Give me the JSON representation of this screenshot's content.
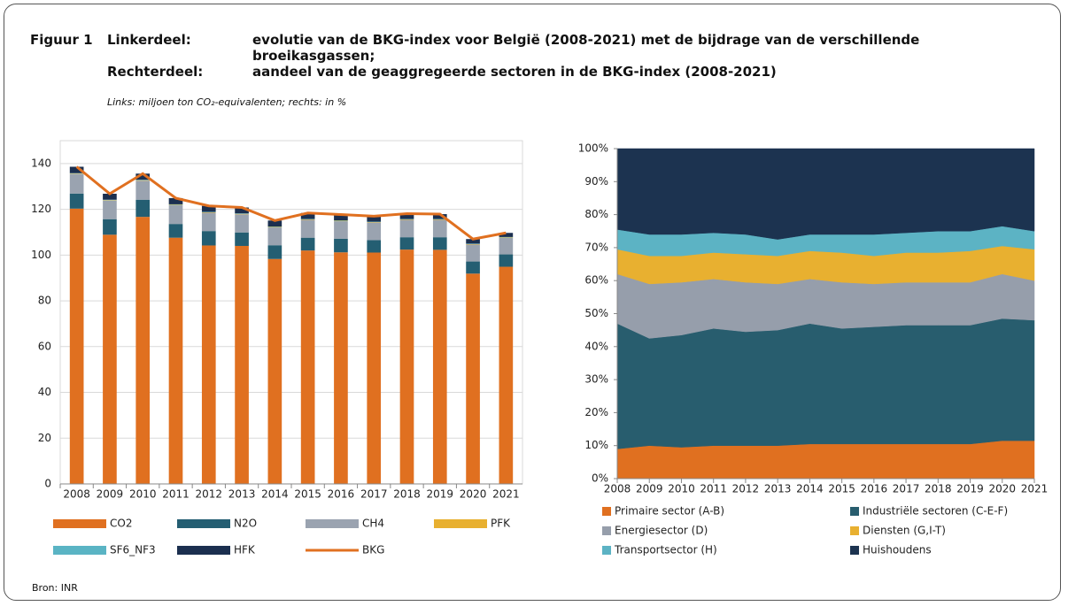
{
  "header": {
    "figure": "Figuur 1",
    "lines": [
      {
        "label": "Linkerdeel:",
        "text": "evolutie van de BKG-index voor België (2008-2021) met de bijdrage van de verschillende broeikasgassen;"
      },
      {
        "label": "Rechterdeel:",
        "text": "aandeel van de geaggregeerde sectoren in de BKG-index (2008-2021)"
      }
    ],
    "note": "Links: miljoen ton CO₂-equivalenten; rechts: in %"
  },
  "source": "Bron: INR",
  "chart_data": [
    {
      "type": "bar",
      "stacked": true,
      "grid": true,
      "legend": "bottom",
      "categories": [
        "2008",
        "2009",
        "2010",
        "2011",
        "2012",
        "2013",
        "2014",
        "2015",
        "2016",
        "2017",
        "2018",
        "2019",
        "2020",
        "2021"
      ],
      "ylim": [
        0,
        150
      ],
      "yticks": [
        0,
        20,
        40,
        60,
        80,
        100,
        120,
        140
      ],
      "series": [
        {
          "name": "CO2",
          "type": "bar",
          "color": "#e07020",
          "values": [
            120.3,
            108.9,
            116.7,
            107.6,
            104.2,
            104.0,
            98.3,
            102.0,
            101.2,
            101.1,
            102.4,
            102.3,
            91.9,
            94.9
          ]
        },
        {
          "name": "N2O",
          "type": "bar",
          "color": "#245e72",
          "values": [
            6.6,
            6.8,
            7.5,
            6.0,
            6.3,
            5.9,
            6.0,
            5.6,
            5.9,
            5.4,
            5.4,
            5.5,
            5.3,
            5.4
          ]
        },
        {
          "name": "CH4",
          "type": "bar",
          "color": "#9aa3b0",
          "values": [
            8.5,
            8.1,
            8.3,
            8.2,
            8.0,
            7.9,
            7.8,
            7.8,
            7.7,
            7.7,
            7.6,
            7.6,
            7.4,
            7.2
          ]
        },
        {
          "name": "PFK",
          "type": "bar",
          "color": "#e8b030",
          "values": [
            0.2,
            0.2,
            0.2,
            0.2,
            0.2,
            0.2,
            0.2,
            0.2,
            0.2,
            0.2,
            0.2,
            0.2,
            0.2,
            0.2
          ]
        },
        {
          "name": "SF6_NF3",
          "type": "bar",
          "color": "#5ab4c4",
          "values": [
            0.2,
            0.2,
            0.2,
            0.2,
            0.2,
            0.2,
            0.2,
            0.2,
            0.2,
            0.2,
            0.2,
            0.2,
            0.2,
            0.2
          ]
        },
        {
          "name": "HFK",
          "type": "bar",
          "color": "#1b2f4f",
          "values": [
            2.8,
            2.6,
            2.7,
            2.7,
            2.6,
            2.6,
            2.6,
            2.6,
            2.5,
            2.4,
            2.3,
            2.1,
            2.0,
            1.8
          ]
        },
        {
          "name": "BKG",
          "type": "line",
          "color": "#e07020",
          "values": [
            138.6,
            126.8,
            135.6,
            124.9,
            121.5,
            120.8,
            115.1,
            118.4,
            117.7,
            117.0,
            118.1,
            117.9,
            107.0,
            109.7
          ]
        }
      ]
    },
    {
      "type": "area",
      "stacked": true,
      "grid": false,
      "legend": "bottom",
      "categories": [
        "2008",
        "2009",
        "2010",
        "2011",
        "2012",
        "2013",
        "2014",
        "2015",
        "2016",
        "2017",
        "2018",
        "2019",
        "2020",
        "2021"
      ],
      "ylim": [
        0,
        100
      ],
      "yticks": [
        {
          "value": 0,
          "label": "0%"
        },
        {
          "value": 10,
          "label": "10%"
        },
        {
          "value": 20,
          "label": "20%"
        },
        {
          "value": 30,
          "label": "30%"
        },
        {
          "value": 40,
          "label": "40%"
        },
        {
          "value": 50,
          "label": "50%"
        },
        {
          "value": 60,
          "label": "60%"
        },
        {
          "value": 70,
          "label": "70%"
        },
        {
          "value": 80,
          "label": "80%"
        },
        {
          "value": 90,
          "label": "90%"
        },
        {
          "value": 100,
          "label": "100%"
        }
      ],
      "series": [
        {
          "name": "Primaire sector (A-B)",
          "color": "#e07020",
          "values": [
            9,
            10,
            9.5,
            10,
            10,
            10,
            10.5,
            10.5,
            10.5,
            10.5,
            10.5,
            10.5,
            11.5,
            11.5
          ]
        },
        {
          "name": "Industriële sectoren (C-E-F)",
          "color": "#285d6e",
          "values": [
            38,
            32.5,
            34,
            35.5,
            34.5,
            35,
            36.5,
            35,
            35.5,
            36,
            36,
            36,
            37,
            36.5
          ]
        },
        {
          "name": "Energiesector (D)",
          "color": "#969eab",
          "values": [
            15,
            16.5,
            16,
            15,
            15,
            14,
            13.5,
            14,
            13,
            13,
            13,
            13,
            13.5,
            12
          ]
        },
        {
          "name": "Diensten (G,I-T)",
          "color": "#e8b030",
          "values": [
            7.5,
            8.5,
            8,
            8,
            8.5,
            8.5,
            8.5,
            9,
            8.5,
            9,
            9,
            9.5,
            8.5,
            9.5
          ]
        },
        {
          "name": "Transportsector (H)",
          "color": "#5cb3c4",
          "values": [
            6,
            6.5,
            6.5,
            6,
            6,
            5,
            5,
            5.5,
            6.5,
            6,
            6.5,
            6,
            6,
            5.5
          ]
        },
        {
          "name": "Huishoudens",
          "color": "#1c3350",
          "values": [
            24.5,
            26,
            26,
            25.5,
            26,
            27.5,
            26,
            26,
            26,
            25.5,
            25,
            25,
            23.5,
            25
          ]
        }
      ]
    }
  ]
}
